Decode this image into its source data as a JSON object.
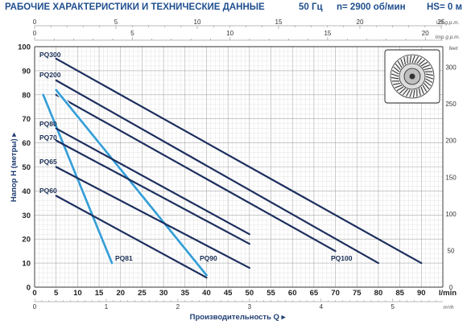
{
  "header": {
    "title": "РАБОЧИЕ ХАРАКТЕРИСТИКИ И ТЕХНИЧЕСКИЕ ДАННЫЕ",
    "frequency": "50 Гц",
    "speed": "n= 2900 об/мин",
    "hs": "HS= 0 м"
  },
  "chart_data": {
    "type": "line",
    "xlabel": "Производительность Q",
    "xunit": "l/min",
    "ylabel": "Напор H (метры)",
    "xlim": [
      0,
      95
    ],
    "ylim": [
      0,
      100
    ],
    "x_ticks": [
      0,
      5,
      10,
      15,
      20,
      25,
      30,
      35,
      40,
      45,
      50,
      55,
      60,
      65,
      70,
      75,
      80,
      85,
      90
    ],
    "y_ticks": [
      0,
      10,
      20,
      30,
      40,
      50,
      60,
      70,
      80,
      90,
      100
    ],
    "grid": true,
    "secondary_axes": {
      "us_gpm": {
        "unit": "US g.p.m.",
        "ticks": [
          0,
          5,
          10,
          15,
          20,
          25
        ]
      },
      "imp_gpm": {
        "unit": "Imp g.p.m.",
        "ticks": [
          0,
          5,
          10,
          15,
          20
        ]
      },
      "m3h": {
        "unit": "m³/h",
        "ticks": [
          0,
          1,
          2,
          3,
          4,
          5
        ]
      },
      "feet": {
        "unit": "feet",
        "ticks": [
          0,
          50,
          100,
          150,
          200,
          250,
          300
        ]
      }
    },
    "series": [
      {
        "name": "PQ300",
        "color": "#1c2f5e",
        "x": [
          5,
          90
        ],
        "y": [
          95,
          10
        ]
      },
      {
        "name": "PQ200",
        "color": "#1c2f5e",
        "x": [
          5,
          80
        ],
        "y": [
          86,
          10
        ]
      },
      {
        "name": "PQ100",
        "color": "#1c2f5e",
        "x": [
          5,
          70
        ],
        "y": [
          80,
          15
        ]
      },
      {
        "name": "PQ81",
        "color": "#3a9fd6",
        "x": [
          2,
          18
        ],
        "y": [
          80,
          10
        ]
      },
      {
        "name": "PQ90",
        "color": "#3a9fd6",
        "x": [
          5,
          40
        ],
        "y": [
          82,
          5
        ]
      },
      {
        "name": "PQ80",
        "color": "#1c2f5e",
        "x": [
          5,
          50
        ],
        "y": [
          66,
          22
        ]
      },
      {
        "name": "PQ70",
        "color": "#1c2f5e",
        "x": [
          5,
          50
        ],
        "y": [
          61,
          18
        ]
      },
      {
        "name": "PQ65",
        "color": "#1c2f5e",
        "x": [
          5,
          50
        ],
        "y": [
          50,
          8
        ]
      },
      {
        "name": "PQ60",
        "color": "#1c2f5e",
        "x": [
          5,
          40
        ],
        "y": [
          38,
          4
        ]
      }
    ]
  }
}
